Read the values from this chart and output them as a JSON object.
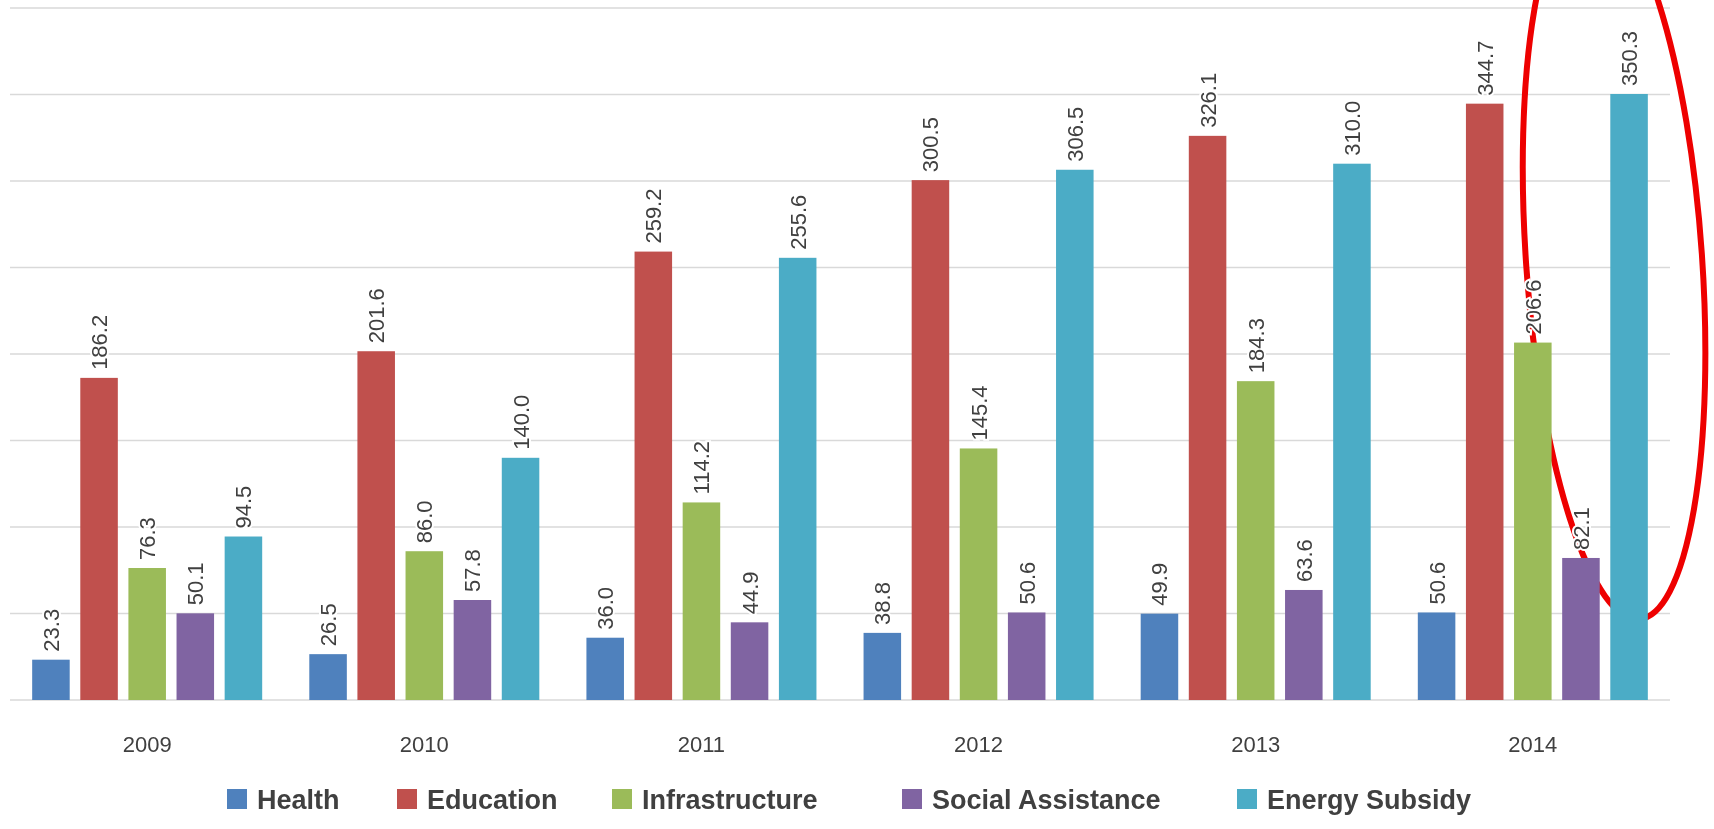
{
  "chart_data": {
    "type": "bar",
    "categories": [
      "2009",
      "2010",
      "2011",
      "2012",
      "2013",
      "2014"
    ],
    "series": [
      {
        "name": "Health",
        "color": "#4f81bd",
        "values": [
          23.3,
          26.5,
          36.0,
          38.8,
          49.9,
          50.6
        ],
        "value_labels": [
          "23.3",
          "26.5",
          "36.0",
          "38.8",
          "49.9",
          "50.6"
        ]
      },
      {
        "name": "Education",
        "color": "#c0504d",
        "values": [
          186.2,
          201.6,
          259.2,
          300.5,
          326.1,
          344.7
        ],
        "value_labels": [
          "186.2",
          "201.6",
          "259.2",
          "300.5",
          "326.1",
          "344.7"
        ]
      },
      {
        "name": "Infrastructure",
        "color": "#9bbb59",
        "values": [
          76.3,
          86.0,
          114.2,
          145.4,
          184.3,
          206.6
        ],
        "value_labels": [
          "76.3",
          "86.0",
          "114.2",
          "145.4",
          "184.3",
          "206.6"
        ]
      },
      {
        "name": "Social Assistance",
        "color": "#8064a2",
        "values": [
          50.1,
          57.8,
          44.9,
          50.6,
          63.6,
          82.1
        ],
        "value_labels": [
          "50.1",
          "57.8",
          "44.9",
          "50.6",
          "63.6",
          "82.1"
        ]
      },
      {
        "name": "Energy Subsidy",
        "color": "#4bacc6",
        "values": [
          94.5,
          140.0,
          255.6,
          306.5,
          310.0,
          350.3
        ],
        "value_labels": [
          "94.5",
          "140.0",
          "255.6",
          "306.5",
          "310.0",
          "350.3"
        ]
      }
    ],
    "ylim": [
      0,
      400
    ],
    "yticks": [
      {
        "value": 0,
        "label": null
      },
      {
        "value": 50,
        "label": null
      },
      {
        "value": 100,
        "label": null
      },
      {
        "value": 150,
        "label": null
      },
      {
        "value": 200,
        "label": null
      },
      {
        "value": 250,
        "label": null
      },
      {
        "value": 300,
        "label": null
      },
      {
        "value": 350,
        "label": null
      },
      {
        "value": 400,
        "label": null
      }
    ],
    "tick_labels": "x",
    "grid": "y",
    "legend": "bottom"
  }
}
